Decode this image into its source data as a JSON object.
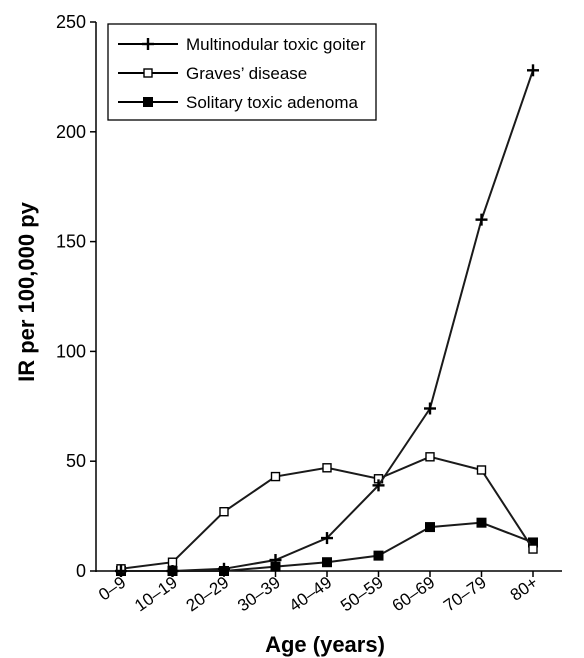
{
  "chart_data": {
    "type": "line",
    "xlabel": "Age (years)",
    "ylabel": "IR per 100,000 py",
    "categories": [
      "0–9",
      "10–19",
      "20–29",
      "30–39",
      "40–49",
      "50–59",
      "60–69",
      "70–79",
      "80+"
    ],
    "ylim": [
      0,
      250
    ],
    "yticks": [
      0,
      50,
      100,
      150,
      200,
      250
    ],
    "grid": false,
    "legend_position": "top-left",
    "series": [
      {
        "name": "Multinodular toxic goiter",
        "marker": "plus",
        "color": "#1a1a1a",
        "values": [
          0,
          0,
          1,
          5,
          15,
          39,
          74,
          160,
          228
        ]
      },
      {
        "name": "Graves’ disease",
        "marker": "open-square",
        "color": "#1a1a1a",
        "values": [
          1,
          4,
          27,
          43,
          47,
          42,
          52,
          46,
          10
        ]
      },
      {
        "name": "Solitary toxic adenoma",
        "marker": "filled-square",
        "color": "#1a1a1a",
        "values": [
          0,
          0,
          0,
          2,
          4,
          7,
          20,
          22,
          13
        ]
      }
    ]
  }
}
